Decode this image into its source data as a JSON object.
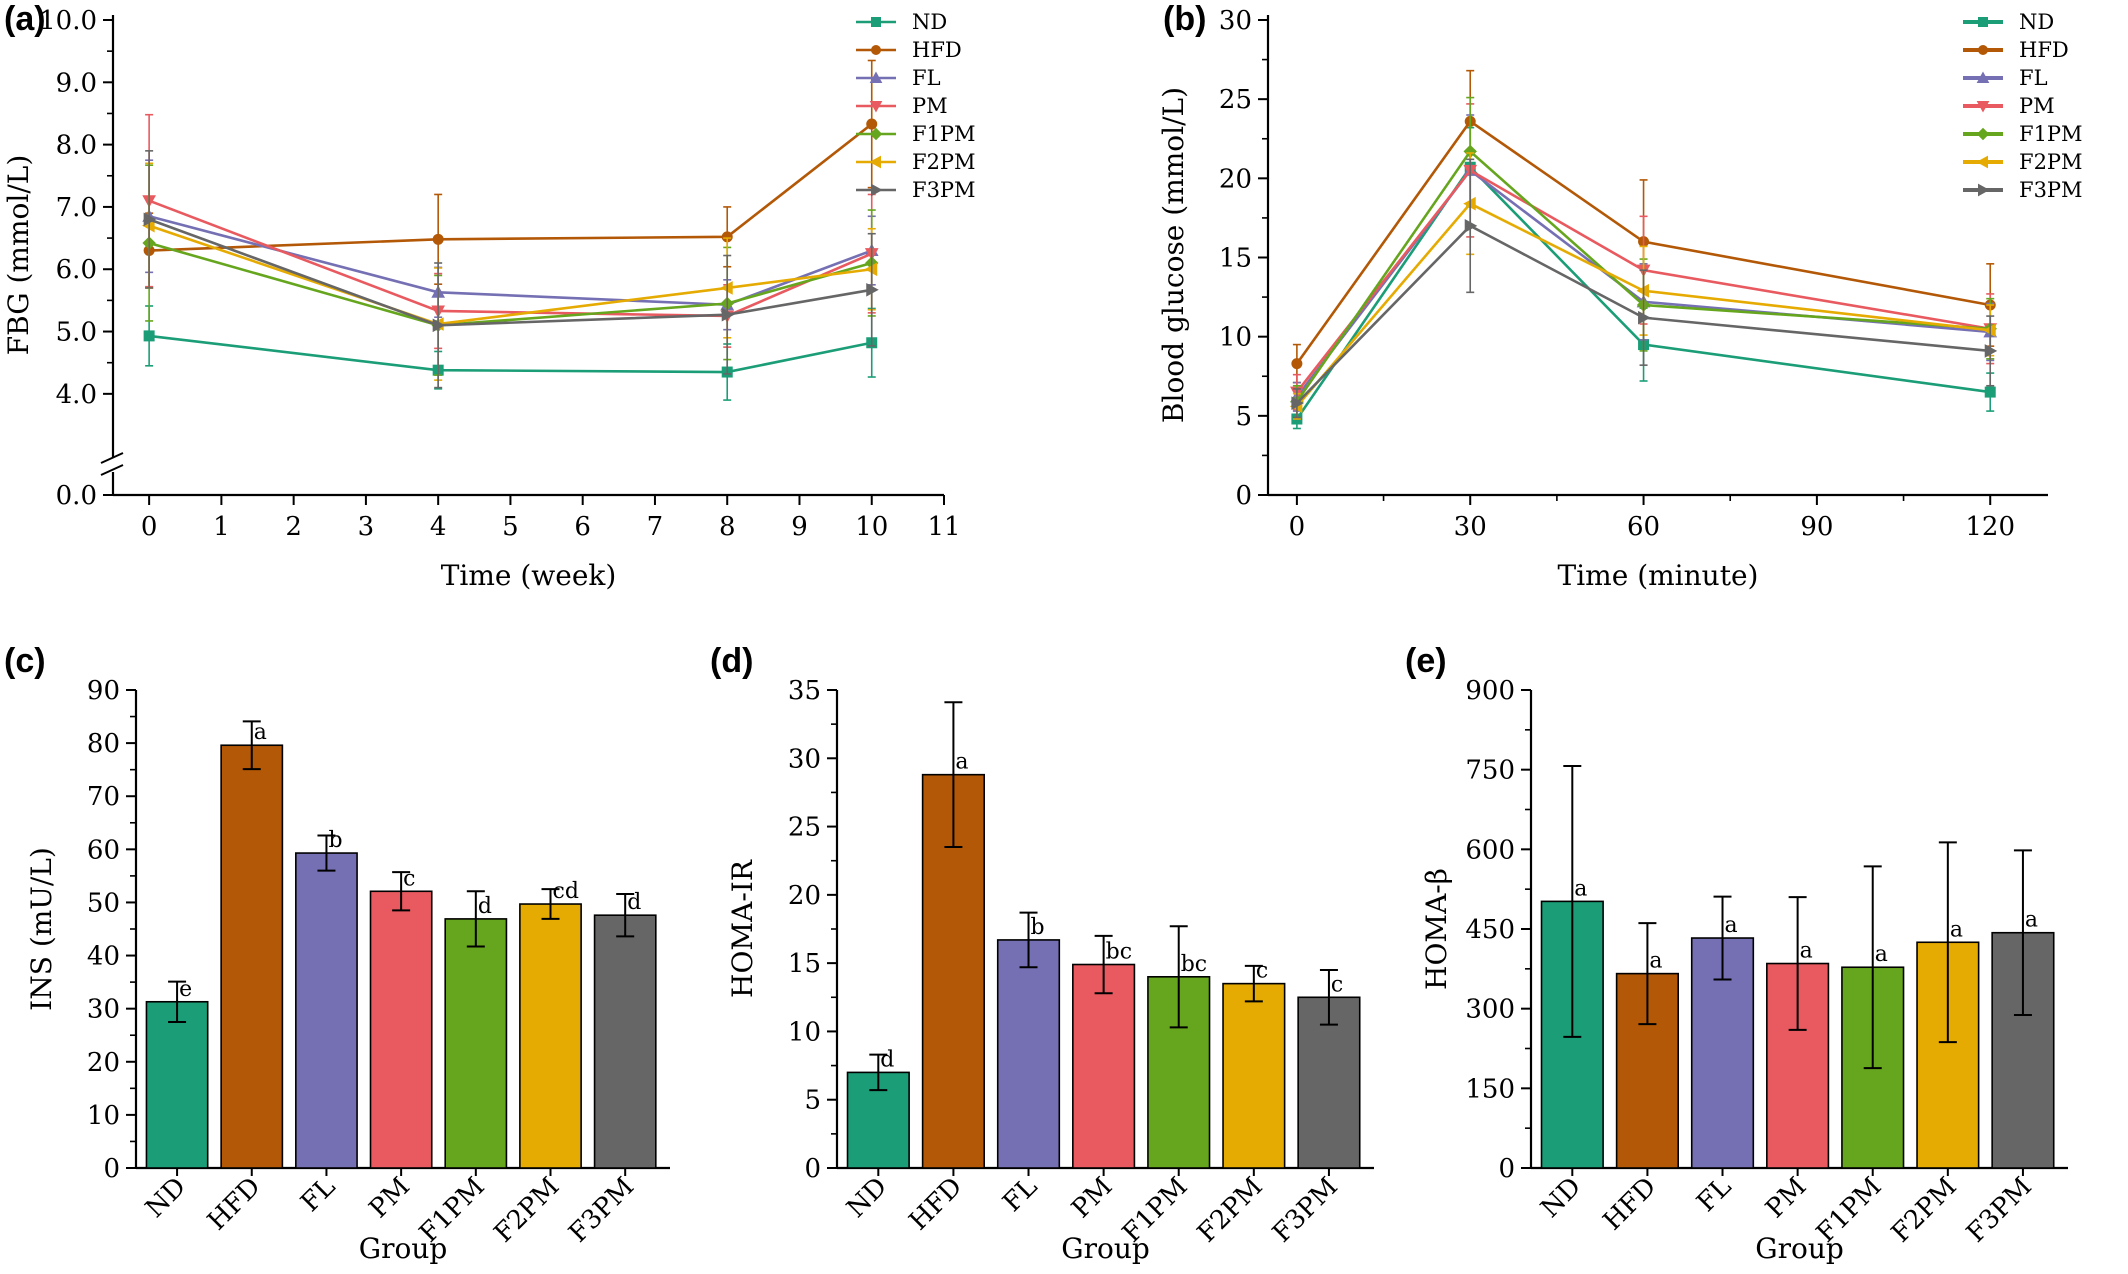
{
  "colors": {
    "ND": "#1b9e77",
    "HFD": "#b35806",
    "FL": "#7570b3",
    "PM": "#e85a5f",
    "F1PM": "#66a61e",
    "F2PM": "#e6ab02",
    "F3PM": "#666666"
  },
  "markers": {
    "ND": "square",
    "HFD": "circle",
    "FL": "triangle-up",
    "PM": "triangle-down",
    "F1PM": "diamond",
    "F2PM": "triangle-left",
    "F3PM": "triangle-right"
  },
  "groups": [
    "ND",
    "HFD",
    "FL",
    "PM",
    "F1PM",
    "F2PM",
    "F3PM"
  ],
  "chart_data": [
    {
      "panel": "(a)",
      "type": "line",
      "xlabel": "Time (week)",
      "ylabel": "FBG (mmol/L)",
      "xlim": [
        -0.5,
        11
      ],
      "xticks": [
        0,
        1,
        2,
        3,
        4,
        5,
        6,
        7,
        8,
        9,
        10,
        11
      ],
      "ylim": [
        3.5,
        10
      ],
      "yticks": [
        "0.0",
        "4.0",
        "5.0",
        "6.0",
        "7.0",
        "8.0",
        "9.0",
        "10.0"
      ],
      "axis_break": true,
      "x": [
        0,
        4,
        8,
        10
      ],
      "legend": "top-right",
      "series": [
        {
          "name": "ND",
          "values": [
            4.93,
            4.38,
            4.35,
            4.82
          ],
          "err": [
            0.48,
            0.3,
            0.45,
            0.55
          ]
        },
        {
          "name": "HFD",
          "values": [
            6.3,
            6.48,
            6.52,
            8.33
          ],
          "err": [
            0.6,
            0.72,
            0.48,
            1.02
          ]
        },
        {
          "name": "FL",
          "values": [
            6.85,
            5.63,
            5.43,
            6.3
          ],
          "err": [
            0.9,
            0.4,
            0.4,
            0.55
          ]
        },
        {
          "name": "PM",
          "values": [
            7.1,
            5.33,
            5.25,
            6.25
          ],
          "err": [
            1.38,
            0.6,
            0.5,
            0.95
          ]
        },
        {
          "name": "F1PM",
          "values": [
            6.42,
            5.1,
            5.45,
            6.1
          ],
          "err": [
            1.25,
            0.8,
            0.9,
            0.85
          ]
        },
        {
          "name": "F2PM",
          "values": [
            6.7,
            5.12,
            5.7,
            6.0
          ],
          "err": [
            1.0,
            0.9,
            0.8,
            0.65
          ]
        },
        {
          "name": "F3PM",
          "values": [
            6.8,
            5.1,
            5.27,
            5.67
          ],
          "err": [
            1.1,
            1.0,
            0.95,
            0.9
          ]
        }
      ]
    },
    {
      "panel": "(b)",
      "type": "line",
      "xlabel": "Time (minute)",
      "ylabel": "Blood glucose (mmol/L)",
      "xlim": [
        -5,
        130
      ],
      "xticks": [
        0,
        30,
        60,
        90,
        120
      ],
      "ylim": [
        0,
        30
      ],
      "yticks": [
        0,
        5,
        10,
        15,
        20,
        25,
        30
      ],
      "x": [
        0,
        30,
        60,
        120
      ],
      "legend": "top-right",
      "series": [
        {
          "name": "ND",
          "values": [
            4.8,
            20.7,
            9.5,
            6.5
          ],
          "err": [
            0.6,
            2.5,
            2.3,
            1.2
          ]
        },
        {
          "name": "HFD",
          "values": [
            8.3,
            23.6,
            16.0,
            12.0
          ],
          "err": [
            1.2,
            3.2,
            3.9,
            2.6
          ]
        },
        {
          "name": "FL",
          "values": [
            6.2,
            20.5,
            12.2,
            10.3
          ],
          "err": [
            0.9,
            3.5,
            2.4,
            1.8
          ]
        },
        {
          "name": "PM",
          "values": [
            6.5,
            20.5,
            14.2,
            10.5
          ],
          "err": [
            1.1,
            4.2,
            3.4,
            2.2
          ]
        },
        {
          "name": "F1PM",
          "values": [
            5.9,
            21.7,
            12.0,
            10.5
          ],
          "err": [
            1.0,
            3.4,
            2.9,
            1.9
          ]
        },
        {
          "name": "F2PM",
          "values": [
            5.6,
            18.4,
            12.9,
            10.4
          ],
          "err": [
            0.8,
            3.2,
            2.8,
            1.6
          ]
        },
        {
          "name": "F3PM",
          "values": [
            5.8,
            17.0,
            11.2,
            9.1
          ],
          "err": [
            0.9,
            4.2,
            3.0,
            2.2
          ]
        }
      ]
    },
    {
      "panel": "(c)",
      "type": "bar",
      "xlabel": "Group",
      "ylabel": "INS (mU/L)",
      "ylim": [
        0,
        90
      ],
      "yticks": [
        0,
        10,
        20,
        30,
        40,
        50,
        60,
        70,
        80,
        90
      ],
      "categories": [
        "ND",
        "HFD",
        "FL",
        "PM",
        "F1PM",
        "F2PM",
        "F3PM"
      ],
      "values": [
        31.3,
        79.6,
        59.3,
        52.1,
        46.9,
        49.7,
        47.6
      ],
      "err": [
        3.8,
        4.5,
        3.3,
        3.6,
        5.2,
        2.8,
        4.0
      ],
      "labels": [
        "e",
        "a",
        "b",
        "c",
        "d",
        "cd",
        "d"
      ]
    },
    {
      "panel": "(d)",
      "type": "bar",
      "xlabel": "Group",
      "ylabel": "HOMA-IR",
      "ylim": [
        0,
        35
      ],
      "yticks": [
        0,
        5,
        10,
        15,
        20,
        25,
        30,
        35
      ],
      "categories": [
        "ND",
        "HFD",
        "FL",
        "PM",
        "F1PM",
        "F2PM",
        "F3PM"
      ],
      "values": [
        7.0,
        28.8,
        16.7,
        14.9,
        14.0,
        13.5,
        12.5
      ],
      "err": [
        1.3,
        5.3,
        2.0,
        2.1,
        3.7,
        1.3,
        2.0
      ],
      "labels": [
        "d",
        "a",
        "b",
        "bc",
        "bc",
        "c",
        "c"
      ]
    },
    {
      "panel": "(e)",
      "type": "bar",
      "xlabel": "Group",
      "ylabel": "HOMA-β",
      "ylim": [
        0,
        900
      ],
      "yticks": [
        0,
        150,
        300,
        450,
        600,
        750,
        900
      ],
      "categories": [
        "ND",
        "HFD",
        "FL",
        "PM",
        "F1PM",
        "F2PM",
        "F3PM"
      ],
      "values": [
        502,
        366,
        433,
        385,
        378,
        425,
        443
      ],
      "err": [
        255,
        95,
        78,
        125,
        190,
        188,
        155
      ],
      "labels": [
        "a",
        "a",
        "a",
        "a",
        "a",
        "a",
        "a"
      ]
    }
  ]
}
